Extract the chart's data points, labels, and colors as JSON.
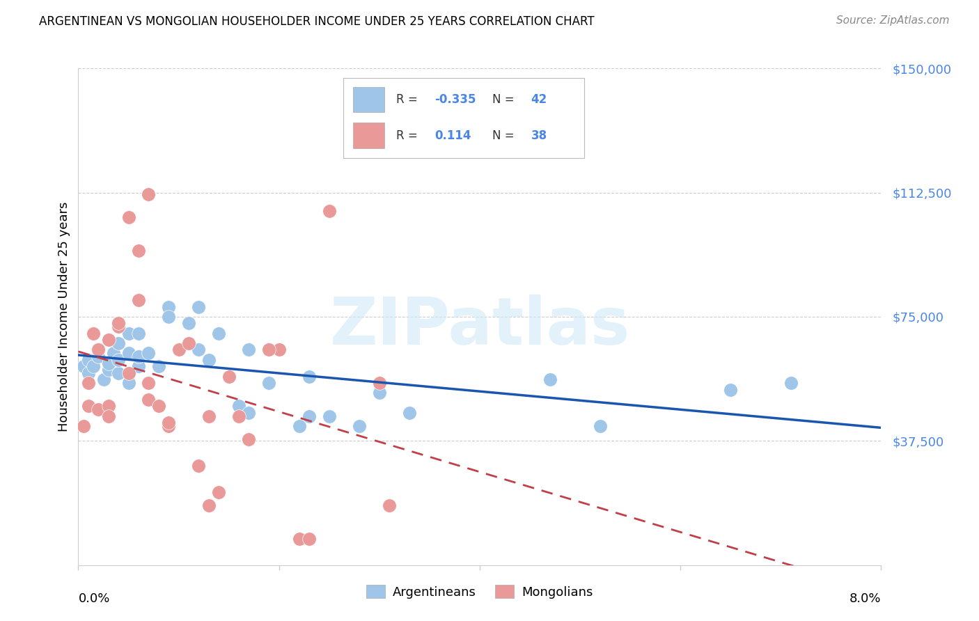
{
  "title": "ARGENTINEAN VS MONGOLIAN HOUSEHOLDER INCOME UNDER 25 YEARS CORRELATION CHART",
  "source": "Source: ZipAtlas.com",
  "ylabel": "Householder Income Under 25 years",
  "xlim": [
    0.0,
    0.08
  ],
  "ylim": [
    0,
    150000
  ],
  "yticks": [
    37500,
    75000,
    112500,
    150000
  ],
  "ytick_labels": [
    "$37,500",
    "$75,000",
    "$112,500",
    "$150,000"
  ],
  "xtick_positions": [
    0.0,
    0.02,
    0.04,
    0.06,
    0.08
  ],
  "blue_scatter_color": "#9fc5e8",
  "pink_scatter_color": "#ea9999",
  "blue_line_color": "#1a56b0",
  "pink_line_color": "#c0404a",
  "accent_color": "#4a86e8",
  "text_dark": "#333333",
  "grid_color": "#cccccc",
  "watermark_text": "ZIPatlas",
  "watermark_color": "#d0e8f8",
  "legend_label_blue": "Argentineans",
  "legend_label_pink": "Mongolians",
  "argentinean_x": [
    0.0005,
    0.001,
    0.001,
    0.0015,
    0.002,
    0.002,
    0.0025,
    0.003,
    0.003,
    0.003,
    0.0035,
    0.004,
    0.004,
    0.004,
    0.005,
    0.005,
    0.005,
    0.006,
    0.006,
    0.006,
    0.007,
    0.007,
    0.008,
    0.009,
    0.009,
    0.011,
    0.012,
    0.012,
    0.013,
    0.014,
    0.016,
    0.017,
    0.017,
    0.019,
    0.022,
    0.023,
    0.023,
    0.025,
    0.028,
    0.03,
    0.033,
    0.047,
    0.052,
    0.065,
    0.071
  ],
  "argentinean_y": [
    60000,
    58000,
    62000,
    60000,
    65000,
    63000,
    56000,
    59000,
    68000,
    61000,
    64000,
    67000,
    58000,
    62000,
    70000,
    64000,
    55000,
    60000,
    63000,
    70000,
    64000,
    55000,
    60000,
    78000,
    75000,
    73000,
    78000,
    65000,
    62000,
    70000,
    48000,
    46000,
    65000,
    55000,
    42000,
    45000,
    57000,
    45000,
    42000,
    52000,
    46000,
    56000,
    42000,
    53000,
    55000
  ],
  "mongolian_x": [
    0.0005,
    0.001,
    0.001,
    0.0015,
    0.002,
    0.002,
    0.002,
    0.003,
    0.003,
    0.003,
    0.004,
    0.004,
    0.005,
    0.005,
    0.006,
    0.006,
    0.007,
    0.007,
    0.007,
    0.008,
    0.009,
    0.009,
    0.01,
    0.011,
    0.012,
    0.013,
    0.013,
    0.014,
    0.015,
    0.016,
    0.017,
    0.02,
    0.022,
    0.023,
    0.025,
    0.03,
    0.031,
    0.019
  ],
  "mongolian_y": [
    42000,
    55000,
    48000,
    70000,
    65000,
    47000,
    65000,
    48000,
    45000,
    68000,
    72000,
    73000,
    58000,
    105000,
    80000,
    95000,
    112000,
    50000,
    55000,
    48000,
    42000,
    43000,
    65000,
    67000,
    30000,
    45000,
    18000,
    22000,
    57000,
    45000,
    38000,
    65000,
    8000,
    8000,
    107000,
    55000,
    18000,
    65000
  ]
}
